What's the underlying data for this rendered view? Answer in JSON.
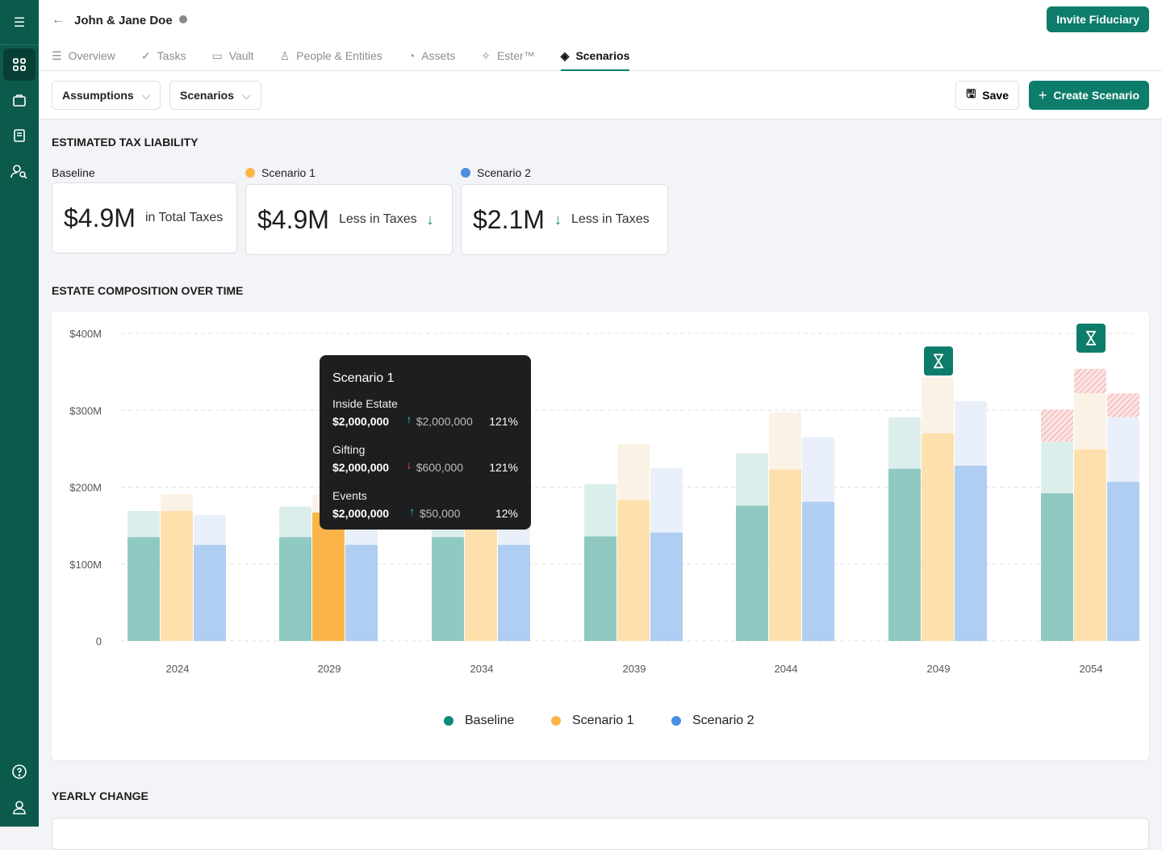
{
  "header": {
    "client": "John & Jane Doe",
    "invite": "Invite Fiduciary"
  },
  "tabs": [
    {
      "label": "Overview",
      "icon": "list-icon"
    },
    {
      "label": "Tasks",
      "icon": "check-icon"
    },
    {
      "label": "Vault",
      "icon": "folder-icon"
    },
    {
      "label": "People & Entities",
      "icon": "person-icon"
    },
    {
      "label": "Assets",
      "icon": "pie-icon"
    },
    {
      "label": "Ester™",
      "icon": "sparkle-icon"
    },
    {
      "label": "Scenarios",
      "icon": "layers-icon",
      "active": true
    }
  ],
  "toolbar": {
    "assumptions": "Assumptions",
    "scenarios": "Scenarios",
    "save": "Save",
    "create": "Create Scenario"
  },
  "tax": {
    "heading": "ESTIMATED TAX LIABILITY",
    "cards": [
      {
        "label": "Baseline",
        "value": "$4.9M",
        "text": "in Total Taxes"
      },
      {
        "label": "Scenario 1",
        "value": "$4.9M",
        "text": "Less in Taxes",
        "color": "#fbb447"
      },
      {
        "label": "Scenario 2",
        "value": "$2.1M",
        "text": "Less in Taxes",
        "color": "#4a8fe0"
      }
    ]
  },
  "composition": {
    "heading": "ESTATE COMPOSITION OVER TIME"
  },
  "tooltip": {
    "title": "Scenario 1",
    "rows": [
      {
        "label": "Inside Estate",
        "value": "$2,000,000",
        "change": "$2,000,000",
        "dir": "up",
        "pct": "121%"
      },
      {
        "label": "Gifting",
        "value": "$2,000,000",
        "change": "$600,000",
        "dir": "down",
        "pct": "121%"
      },
      {
        "label": "Events",
        "value": "$2,000,000",
        "change": "$50,000",
        "dir": "up",
        "pct": "12%"
      }
    ]
  },
  "chart_data": {
    "type": "bar",
    "stacked": true,
    "ylim": [
      0,
      400
    ],
    "yticks": [
      "0",
      "$100M",
      "$200M",
      "$300M",
      "$400M"
    ],
    "categories": [
      "2024",
      "2029",
      "2034",
      "2039",
      "2044",
      "2049",
      "2054"
    ],
    "series": [
      {
        "name": "Baseline",
        "color": "#0e8a78",
        "inside": [
          135,
          135,
          135,
          136,
          176,
          224,
          192
        ],
        "total": [
          169,
          175,
          175,
          204,
          244,
          291,
          259
        ],
        "excess": [
          0,
          0,
          0,
          0,
          0,
          0,
          301
        ]
      },
      {
        "name": "Scenario 1",
        "color": "#fbb447",
        "inside": [
          169,
          167,
          170,
          183,
          223,
          270,
          249
        ],
        "total": [
          191,
          190,
          190,
          256,
          297,
          343,
          322
        ],
        "excess": [
          0,
          0,
          0,
          0,
          0,
          0,
          354
        ]
      },
      {
        "name": "Scenario 2",
        "color": "#4a8fe0",
        "inside": [
          125,
          125,
          125,
          141,
          181,
          228,
          207
        ],
        "total": [
          164,
          164,
          164,
          225,
          265,
          312,
          291
        ],
        "excess": [
          0,
          0,
          0,
          0,
          0,
          0,
          322
        ]
      }
    ],
    "highlight": {
      "category": "2029",
      "series": "Scenario 1"
    },
    "markers": [
      {
        "category": "2049",
        "icon": "hourglass-icon"
      },
      {
        "category": "2054",
        "icon": "hourglass-icon"
      }
    ],
    "legend": "bottom"
  },
  "yearly": {
    "heading": "YEARLY CHANGE"
  }
}
